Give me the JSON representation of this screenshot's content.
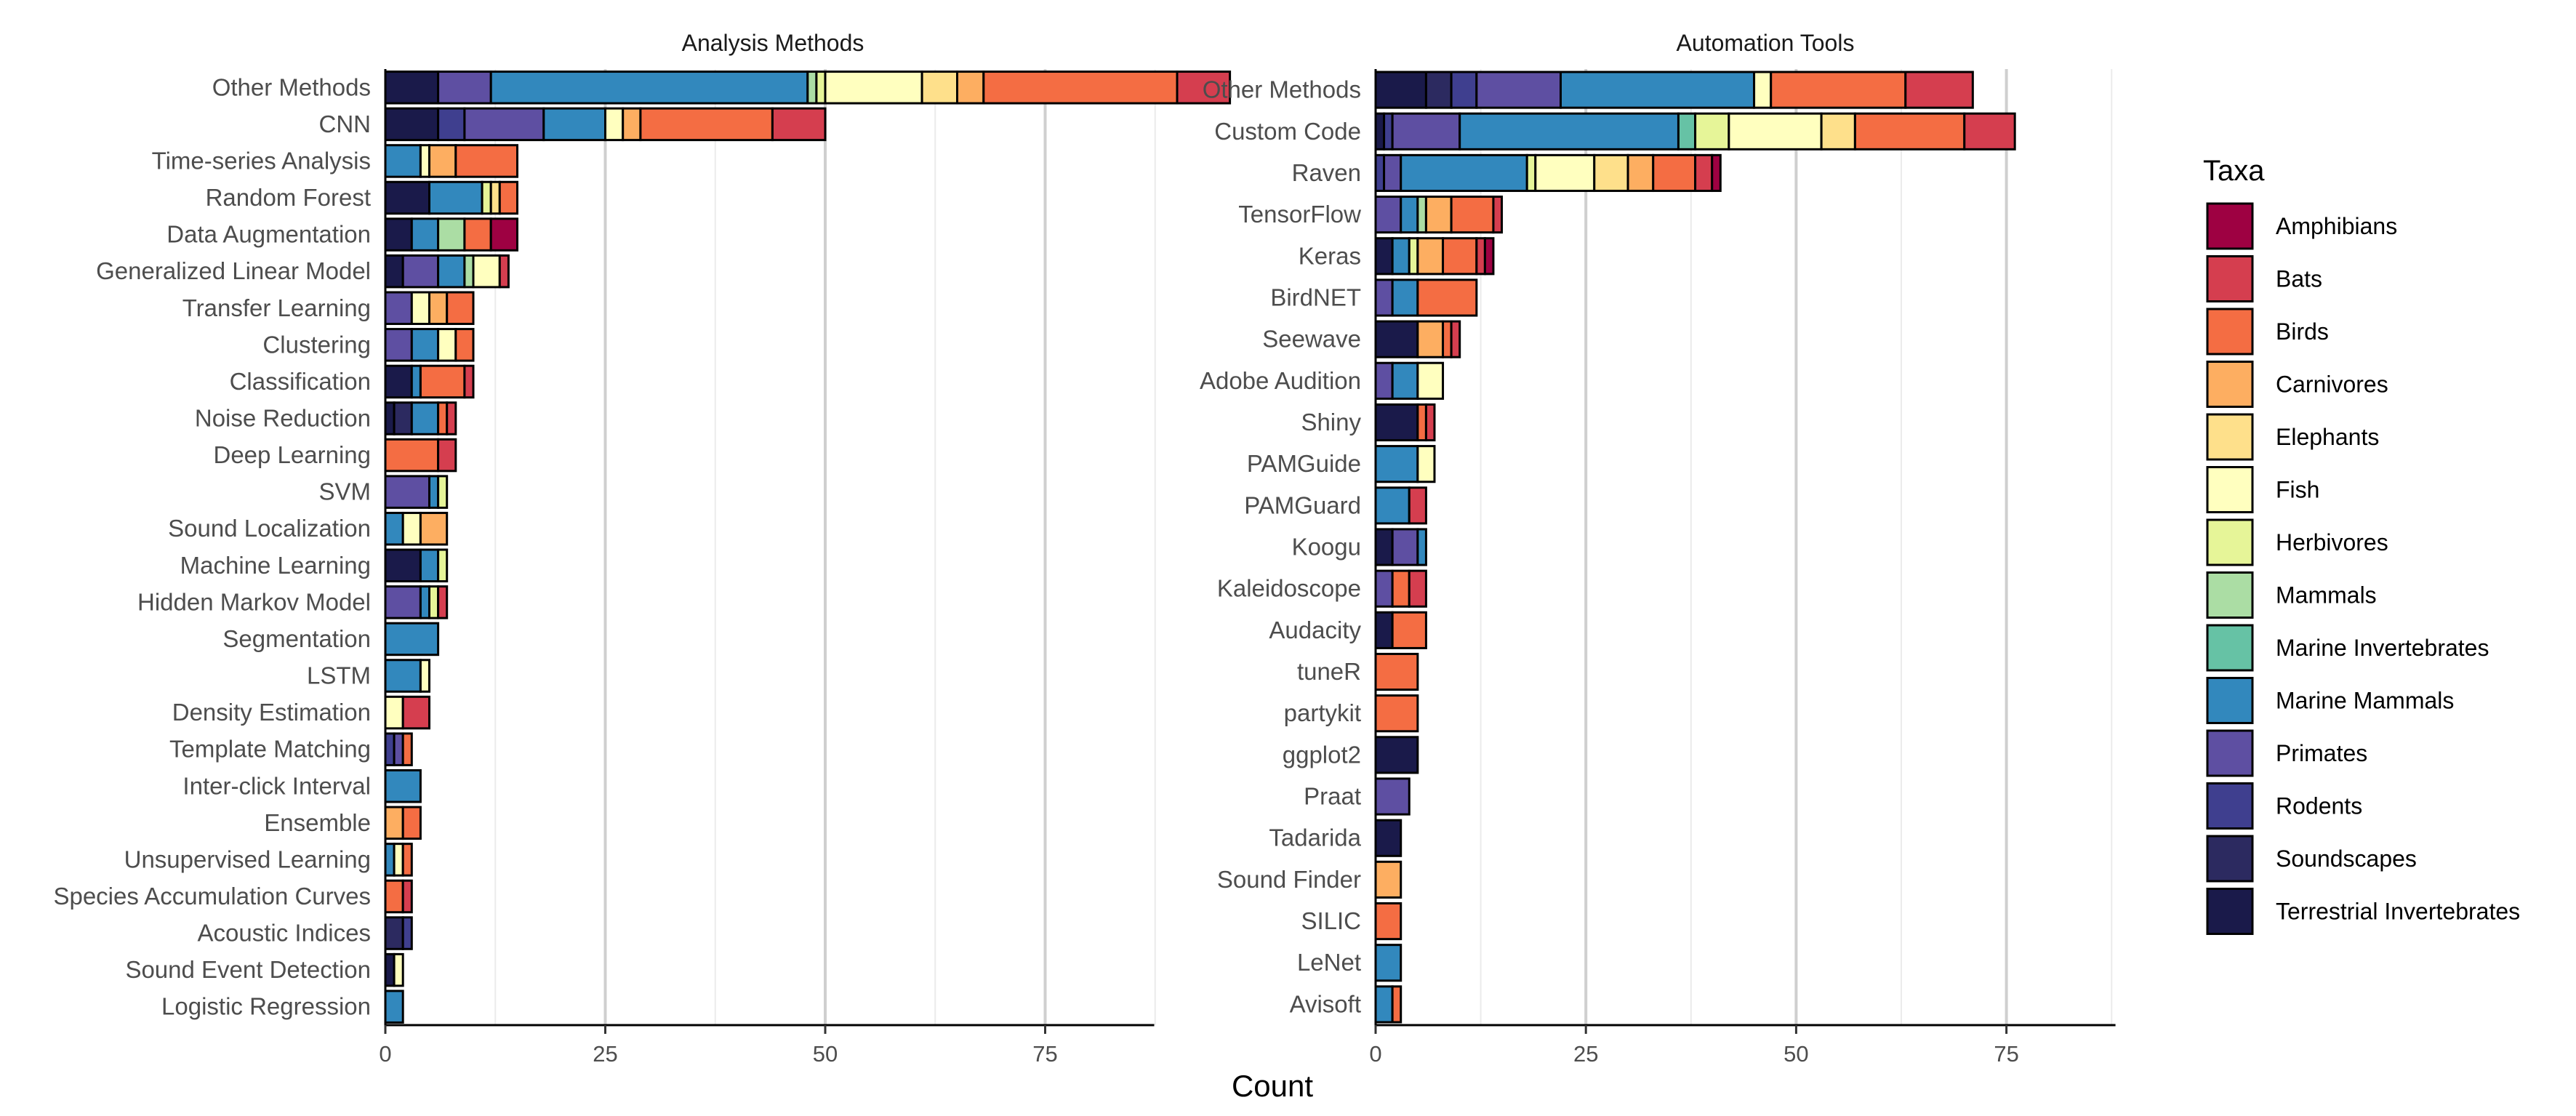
{
  "axis_title": "Count",
  "legend_title": "Taxa",
  "taxa": [
    {
      "name": "Amphibians",
      "color": "#9E0142"
    },
    {
      "name": "Bats",
      "color": "#D53E4F"
    },
    {
      "name": "Birds",
      "color": "#F46D43"
    },
    {
      "name": "Carnivores",
      "color": "#FDAE61"
    },
    {
      "name": "Elephants",
      "color": "#FEE08B"
    },
    {
      "name": "Fish",
      "color": "#FFFFBF"
    },
    {
      "name": "Herbivores",
      "color": "#E6F598"
    },
    {
      "name": "Mammals",
      "color": "#ABDDA4"
    },
    {
      "name": "Marine Invertebrates",
      "color": "#66C2A5"
    },
    {
      "name": "Marine Mammals",
      "color": "#3288BD"
    },
    {
      "name": "Primates",
      "color": "#5E4FA2"
    },
    {
      "name": "Rodents",
      "color": "#3F3F8F"
    },
    {
      "name": "Soundscapes",
      "color": "#2C2A60"
    },
    {
      "name": "Terrestrial Invertebrates",
      "color": "#1A1A4A"
    }
  ],
  "chart_data": [
    {
      "type": "bar",
      "orientation": "horizontal",
      "stacked": true,
      "title": "Analysis Methods",
      "xlabel": "Count",
      "xlim": [
        0,
        100
      ],
      "xticks": [
        0,
        25,
        50,
        75
      ],
      "categories": [
        "Other Methods",
        "CNN",
        "Time-series Analysis",
        "Random Forest",
        "Data Augmentation",
        "Generalized Linear Model",
        "Transfer Learning",
        "Clustering",
        "Classification",
        "Noise Reduction",
        "Deep Learning",
        "SVM",
        "Sound Localization",
        "Machine Learning",
        "Hidden Markov Model",
        "Segmentation",
        "LSTM",
        "Density Estimation",
        "Template Matching",
        "Inter-click Interval",
        "Ensemble",
        "Unsupervised Learning",
        "Species Accumulation Curves",
        "Acoustic Indices",
        "Sound Event Detection",
        "Logistic Regression"
      ],
      "series": [
        {
          "name": "Terrestrial Invertebrates",
          "values": [
            6,
            6,
            0,
            5,
            3,
            2,
            0,
            0,
            3,
            1,
            0,
            0,
            0,
            4,
            0,
            0,
            0,
            0,
            0,
            0,
            0,
            0,
            0,
            0,
            1,
            0
          ]
        },
        {
          "name": "Soundscapes",
          "values": [
            0,
            0,
            0,
            0,
            0,
            0,
            0,
            0,
            0,
            2,
            0,
            0,
            0,
            0,
            0,
            0,
            0,
            0,
            0,
            0,
            0,
            0,
            0,
            2,
            0,
            0
          ]
        },
        {
          "name": "Rodents",
          "values": [
            0,
            3,
            0,
            0,
            0,
            0,
            0,
            0,
            0,
            0,
            0,
            0,
            0,
            0,
            0,
            0,
            0,
            0,
            1,
            0,
            0,
            0,
            0,
            1,
            0,
            0
          ]
        },
        {
          "name": "Primates",
          "values": [
            6,
            9,
            0,
            0,
            0,
            4,
            3,
            3,
            0,
            0,
            0,
            5,
            0,
            0,
            4,
            0,
            0,
            0,
            1,
            0,
            0,
            0,
            0,
            0,
            0,
            0
          ]
        },
        {
          "name": "Marine Mammals",
          "values": [
            36,
            7,
            4,
            6,
            3,
            3,
            0,
            3,
            1,
            3,
            0,
            1,
            2,
            2,
            1,
            6,
            4,
            0,
            0,
            4,
            0,
            1,
            0,
            0,
            0,
            2
          ]
        },
        {
          "name": "Marine Invertebrates",
          "values": [
            0,
            0,
            0,
            0,
            0,
            0,
            0,
            0,
            0,
            0,
            0,
            0,
            0,
            0,
            0,
            0,
            0,
            0,
            0,
            0,
            0,
            0,
            0,
            0,
            0,
            0
          ]
        },
        {
          "name": "Mammals",
          "values": [
            1,
            0,
            0,
            0,
            3,
            1,
            0,
            0,
            0,
            0,
            0,
            0,
            0,
            0,
            0,
            0,
            0,
            0,
            0,
            0,
            0,
            0,
            0,
            0,
            0,
            0
          ]
        },
        {
          "name": "Herbivores",
          "values": [
            1,
            0,
            0,
            1,
            0,
            0,
            0,
            0,
            0,
            0,
            0,
            1,
            0,
            1,
            1,
            0,
            0,
            0,
            0,
            0,
            0,
            0,
            0,
            0,
            0,
            0
          ]
        },
        {
          "name": "Fish",
          "values": [
            11,
            2,
            1,
            0,
            0,
            3,
            2,
            2,
            0,
            0,
            0,
            0,
            2,
            0,
            0,
            0,
            1,
            2,
            0,
            0,
            0,
            1,
            0,
            0,
            1,
            0
          ]
        },
        {
          "name": "Elephants",
          "values": [
            4,
            0,
            0,
            1,
            0,
            0,
            0,
            0,
            0,
            0,
            0,
            0,
            0,
            0,
            0,
            0,
            0,
            0,
            0,
            0,
            0,
            0,
            0,
            0,
            0,
            0
          ]
        },
        {
          "name": "Carnivores",
          "values": [
            3,
            2,
            3,
            0,
            0,
            0,
            2,
            0,
            0,
            0,
            0,
            0,
            3,
            0,
            0,
            0,
            0,
            0,
            0,
            0,
            2,
            0,
            0,
            0,
            0,
            0
          ]
        },
        {
          "name": "Birds",
          "values": [
            22,
            15,
            7,
            2,
            3,
            0,
            3,
            2,
            5,
            1,
            6,
            0,
            0,
            0,
            0,
            0,
            0,
            0,
            1,
            0,
            2,
            1,
            2,
            0,
            0,
            0
          ]
        },
        {
          "name": "Bats",
          "values": [
            6,
            6,
            0,
            0,
            0,
            1,
            0,
            0,
            1,
            1,
            2,
            0,
            0,
            0,
            1,
            0,
            0,
            3,
            0,
            0,
            0,
            0,
            1,
            0,
            0,
            0
          ]
        },
        {
          "name": "Amphibians",
          "values": [
            0,
            0,
            0,
            0,
            3,
            0,
            0,
            0,
            0,
            0,
            0,
            0,
            0,
            0,
            0,
            0,
            0,
            0,
            0,
            0,
            0,
            0,
            0,
            0,
            0,
            0
          ]
        }
      ]
    },
    {
      "type": "bar",
      "orientation": "horizontal",
      "stacked": true,
      "title": "Automation Tools",
      "xlabel": "Count",
      "xlim": [
        0,
        88
      ],
      "xticks": [
        0,
        25,
        50,
        75
      ],
      "categories": [
        "Other Methods",
        "Custom Code",
        "Raven",
        "TensorFlow",
        "Keras",
        "BirdNET",
        "Seewave",
        "Adobe Audition",
        "Shiny",
        "PAMGuide",
        "PAMGuard",
        "Koogu",
        "Kaleidoscope",
        "Audacity",
        "tuneR",
        "partykit",
        "ggplot2",
        "Praat",
        "Tadarida",
        "Sound Finder",
        "SILIC",
        "LeNet",
        "Avisoft"
      ],
      "series": [
        {
          "name": "Terrestrial Invertebrates",
          "values": [
            6,
            1,
            0,
            0,
            2,
            0,
            5,
            0,
            5,
            0,
            0,
            2,
            0,
            2,
            0,
            0,
            5,
            0,
            3,
            0,
            0,
            0,
            0
          ]
        },
        {
          "name": "Soundscapes",
          "values": [
            3,
            0,
            0,
            0,
            0,
            0,
            0,
            0,
            0,
            0,
            0,
            0,
            0,
            0,
            0,
            0,
            0,
            0,
            0,
            0,
            0,
            0,
            0
          ]
        },
        {
          "name": "Rodents",
          "values": [
            3,
            1,
            1,
            0,
            0,
            0,
            0,
            0,
            0,
            0,
            0,
            0,
            0,
            0,
            0,
            0,
            0,
            0,
            0,
            0,
            0,
            0,
            0
          ]
        },
        {
          "name": "Primates",
          "values": [
            10,
            8,
            2,
            3,
            0,
            2,
            0,
            2,
            0,
            0,
            0,
            3,
            2,
            0,
            0,
            0,
            0,
            4,
            0,
            0,
            0,
            0,
            0
          ]
        },
        {
          "name": "Marine Mammals",
          "values": [
            23,
            26,
            15,
            2,
            2,
            3,
            0,
            3,
            0,
            5,
            4,
            1,
            0,
            0,
            0,
            0,
            0,
            0,
            0,
            0,
            0,
            3,
            2
          ]
        },
        {
          "name": "Marine Invertebrates",
          "values": [
            0,
            2,
            0,
            0,
            0,
            0,
            0,
            0,
            0,
            0,
            0,
            0,
            0,
            0,
            0,
            0,
            0,
            0,
            0,
            0,
            0,
            0,
            0
          ]
        },
        {
          "name": "Mammals",
          "values": [
            0,
            0,
            0,
            1,
            0,
            0,
            0,
            0,
            0,
            0,
            0,
            0,
            0,
            0,
            0,
            0,
            0,
            0,
            0,
            0,
            0,
            0,
            0
          ]
        },
        {
          "name": "Herbivores",
          "values": [
            0,
            4,
            1,
            0,
            1,
            0,
            0,
            0,
            0,
            0,
            0,
            0,
            0,
            0,
            0,
            0,
            0,
            0,
            0,
            0,
            0,
            0,
            0
          ]
        },
        {
          "name": "Fish",
          "values": [
            2,
            11,
            7,
            0,
            0,
            0,
            0,
            3,
            0,
            2,
            0,
            0,
            0,
            0,
            0,
            0,
            0,
            0,
            0,
            0,
            0,
            0,
            0
          ]
        },
        {
          "name": "Elephants",
          "values": [
            0,
            4,
            4,
            0,
            0,
            0,
            0,
            0,
            0,
            0,
            0,
            0,
            0,
            0,
            0,
            0,
            0,
            0,
            0,
            0,
            0,
            0,
            0
          ]
        },
        {
          "name": "Carnivores",
          "values": [
            0,
            0,
            3,
            3,
            3,
            0,
            3,
            0,
            0,
            0,
            0,
            0,
            0,
            0,
            0,
            0,
            0,
            0,
            0,
            3,
            0,
            0,
            0
          ]
        },
        {
          "name": "Birds",
          "values": [
            16,
            13,
            5,
            5,
            4,
            7,
            1,
            0,
            1,
            0,
            0,
            0,
            2,
            4,
            5,
            5,
            0,
            0,
            0,
            0,
            3,
            0,
            1
          ]
        },
        {
          "name": "Bats",
          "values": [
            8,
            6,
            2,
            1,
            1,
            0,
            1,
            0,
            1,
            0,
            2,
            0,
            2,
            0,
            0,
            0,
            0,
            0,
            0,
            0,
            0,
            0,
            0
          ]
        },
        {
          "name": "Amphibians",
          "values": [
            0,
            0,
            1,
            0,
            1,
            0,
            0,
            0,
            0,
            0,
            0,
            0,
            0,
            0,
            0,
            0,
            0,
            0,
            0,
            0,
            0,
            0,
            0
          ]
        }
      ]
    }
  ]
}
